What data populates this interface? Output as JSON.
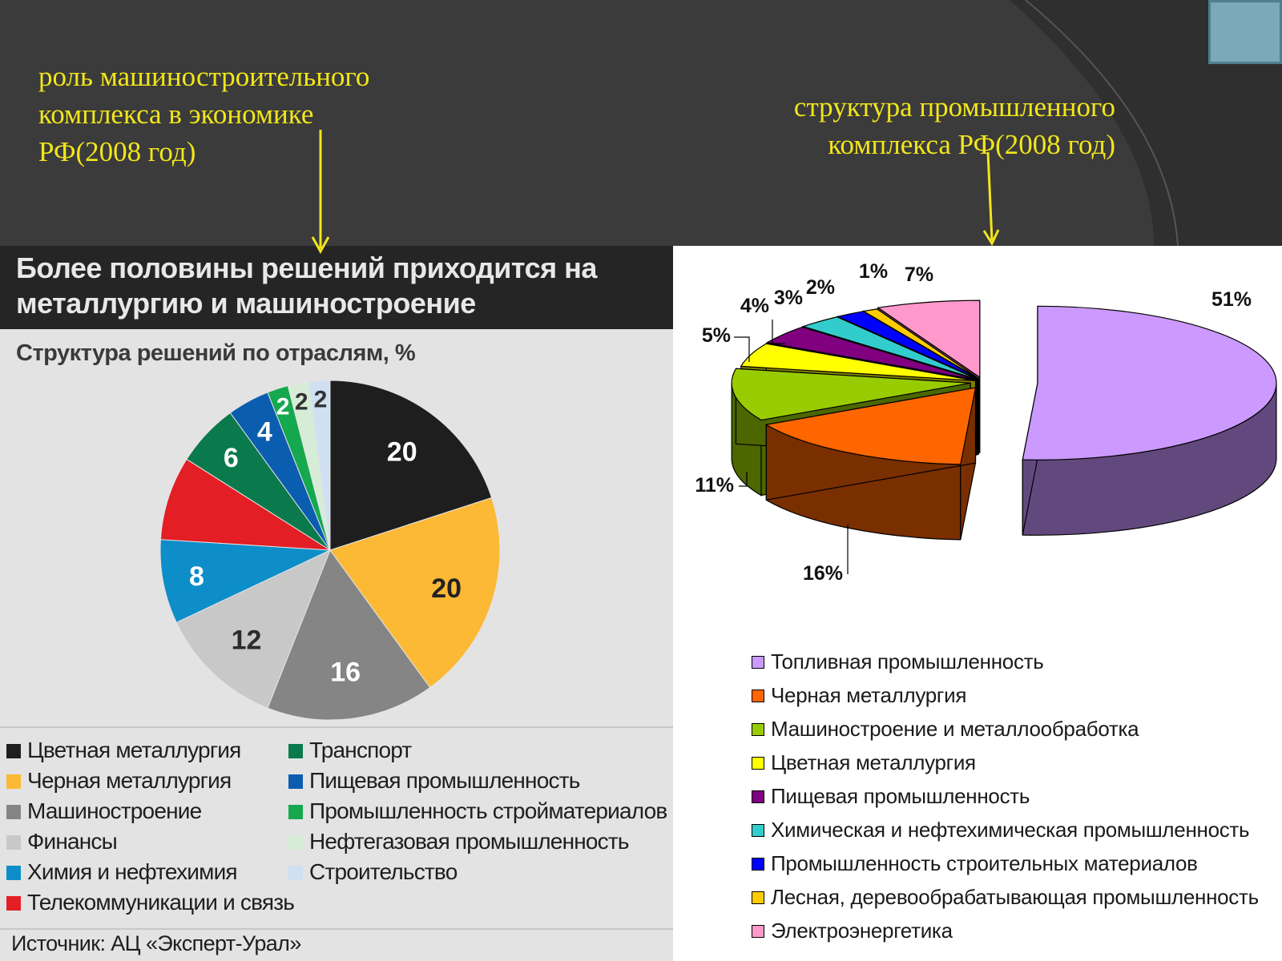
{
  "captions": {
    "left": "роль машиностроительного\nкомплекса  в экономике\nРФ(2008 год)",
    "right": "структура  промышленного\nкомплекса  РФ(2008 год)"
  },
  "colors": {
    "caption": "#f2e61b",
    "slide_background": "#3b3b3b",
    "accent_square": "#7aaab8"
  },
  "chart_data": [
    {
      "type": "pie",
      "title": "Более половины решений приходится на\nметаллургию и машиностроение",
      "subtitle": "Структура решений по отраслям, %",
      "source": "Источник: АЦ «Эксперт-Урал»",
      "legend_position": "bottom",
      "slices": [
        {
          "label": "Цветная металлургия",
          "value": 20,
          "value_label": "20",
          "color": "#1e1e1e",
          "label_color": "#ffffff"
        },
        {
          "label": "Черная металлургия",
          "value": 20,
          "value_label": "20",
          "color": "#fbb935",
          "label_color": "#222222"
        },
        {
          "label": "Машиностроение",
          "value": 16,
          "value_label": "16",
          "color": "#858585",
          "label_color": "#ffffff"
        },
        {
          "label": "Финансы",
          "value": 12,
          "value_label": "12",
          "color": "#c8c8c8",
          "label_color": "#2b2b2b"
        },
        {
          "label": "Химия и нефтехимия",
          "value": 8,
          "value_label": "8",
          "color": "#0d8ec9",
          "label_color": "#ffffff"
        },
        {
          "label": "Телекоммуникации и связь",
          "value": 8,
          "value_label": "8",
          "color": "#e31e25",
          "label_color": "#e31e25"
        },
        {
          "label": "Транспорт",
          "value": 6,
          "value_label": "6",
          "color": "#0a7a4c",
          "label_color": "#ffffff"
        },
        {
          "label": "Пищевая промышленность",
          "value": 4,
          "value_label": "4",
          "color": "#0b5db0",
          "label_color": "#ffffff"
        },
        {
          "label": "Промышленность стройматериалов",
          "value": 2,
          "value_label": "2",
          "color": "#15a84f",
          "label_color": "#ffffff"
        },
        {
          "label": "Нефтегазовая промышленность",
          "value": 2,
          "value_label": "2",
          "color": "#d7ecd6",
          "label_color": "#333333"
        },
        {
          "label": "Строительство",
          "value": 2,
          "value_label": "2",
          "color": "#cfe0f2",
          "label_color": "#333333"
        }
      ]
    },
    {
      "type": "pie",
      "style": "3d-exploded",
      "legend_position": "bottom",
      "slices": [
        {
          "label": "Топливная промышленность",
          "value": 51,
          "value_label": "51%",
          "color": "#cc99ff",
          "side_color": "#62497d"
        },
        {
          "label": "Черная металлургия",
          "value": 16,
          "value_label": "16%",
          "color": "#ff6600",
          "side_color": "#7a2f00"
        },
        {
          "label": "Машиностроение и металлообработка",
          "value": 11,
          "value_label": "11%",
          "color": "#99cc00",
          "side_color": "#4c6600"
        },
        {
          "label": "Цветная металлургия",
          "value": 5,
          "value_label": "5%",
          "color": "#ffff00",
          "side_color": "#808000"
        },
        {
          "label": "Пищевая промышленность",
          "value": 4,
          "value_label": "4%",
          "color": "#800080",
          "side_color": "#400040"
        },
        {
          "label": "Химическая и нефтехимическая промышленность",
          "value": 3,
          "value_label": "3%",
          "color": "#33cccc",
          "side_color": "#1a6666"
        },
        {
          "label": "Промышленность строительных материалов",
          "value": 2,
          "value_label": "2%",
          "color": "#0000ff",
          "side_color": "#000080"
        },
        {
          "label": "Лесная, деревообрабатывающая промышленность",
          "value": 1,
          "value_label": "1%",
          "color": "#ffcc00",
          "side_color": "#806600"
        },
        {
          "label": "Электроэнергетика",
          "value": 7,
          "value_label": "7%",
          "color": "#ff99cc",
          "side_color": "#804c66"
        }
      ]
    }
  ]
}
